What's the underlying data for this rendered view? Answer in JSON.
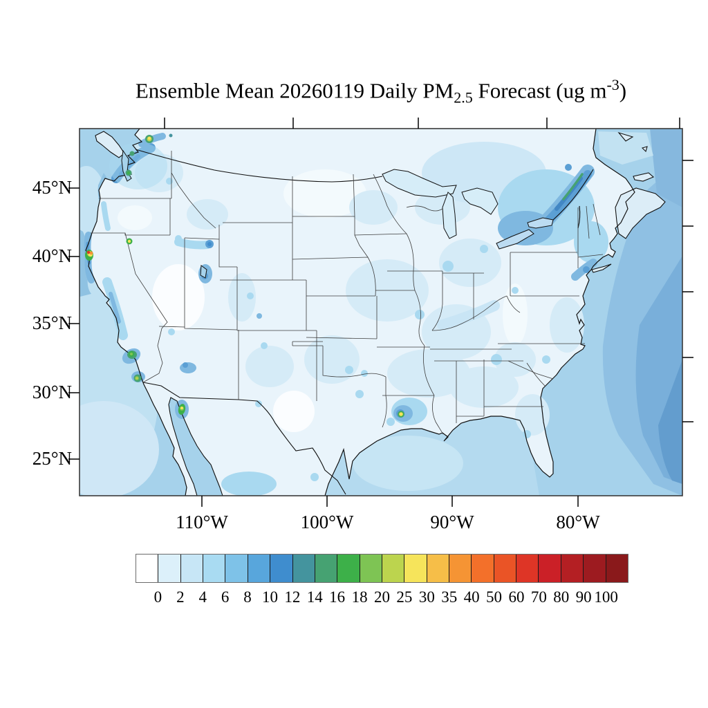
{
  "title": {
    "prefix": "Ensemble Mean 20260119 Daily PM",
    "sub": "2.5",
    "mid": " Forecast (ug m",
    "sup": "-3",
    "suffix": ")"
  },
  "axes": {
    "lat": [
      {
        "label": "45°N"
      },
      {
        "label": "40°N"
      },
      {
        "label": "35°N"
      },
      {
        "label": "30°N"
      },
      {
        "label": "25°N"
      }
    ],
    "lon": [
      {
        "label": "110°W"
      },
      {
        "label": "100°W"
      },
      {
        "label": "90°W"
      },
      {
        "label": "80°W"
      }
    ]
  },
  "colorbar": {
    "labels": [
      "0",
      "2",
      "4",
      "6",
      "8",
      "10",
      "12",
      "14",
      "16",
      "18",
      "20",
      "25",
      "30",
      "35",
      "40",
      "50",
      "60",
      "70",
      "80",
      "90",
      "100"
    ],
    "colors": [
      "#ffffff",
      "#dcf0fa",
      "#c7e6f6",
      "#a9dbf2",
      "#7ec2e8",
      "#58a6dc",
      "#3f8dce",
      "#44949e",
      "#46a272",
      "#3db049",
      "#7ec454",
      "#bcd44e",
      "#f6e45b",
      "#f6be48",
      "#f59434",
      "#f3702a",
      "#ea5426",
      "#de3526",
      "#cb2027",
      "#b41f23",
      "#9d1b20",
      "#8a191b"
    ]
  },
  "chart_data": {
    "type": "heatmap",
    "subtype": "filled-contour geographic map",
    "title": "Ensemble Mean 20260119 Daily PM2.5 Forecast (ug m-3)",
    "variable": "Daily PM2.5",
    "units": "ug m-3",
    "date": "20260119",
    "model": "Ensemble Mean",
    "region": "Continental United States and adjacent Canada/Mexico/oceans",
    "x_axis": {
      "label_ticks": [
        "110°W",
        "100°W",
        "90°W",
        "80°W"
      ]
    },
    "y_axis": {
      "label_ticks": [
        "45°N",
        "40°N",
        "35°N",
        "30°N",
        "25°N"
      ]
    },
    "contour_levels": [
      0,
      2,
      4,
      6,
      8,
      10,
      12,
      14,
      16,
      18,
      20,
      25,
      30,
      35,
      40,
      50,
      60,
      70,
      80,
      90,
      100
    ],
    "palette_hex": [
      "#ffffff",
      "#dcf0fa",
      "#c7e6f6",
      "#a9dbf2",
      "#7ec2e8",
      "#58a6dc",
      "#3f8dce",
      "#44949e",
      "#46a272",
      "#3db049",
      "#7ec454",
      "#bcd44e",
      "#f6e45b",
      "#f6be48",
      "#f59434",
      "#f3702a",
      "#ea5426",
      "#de3526",
      "#cb2027",
      "#b41f23",
      "#9d1b20",
      "#8a191b"
    ],
    "legend_position": "bottom horizontal colorbar",
    "grid": "off",
    "general_field": "Most of CONUS in 0-8 ug/m3 (pale blues); oceans 4-8; darker 8-14 bands over Pacific Northwest, California coast/valleys, Louisiana, Northeast/St. Lawrence valley and offshore southeast Atlantic",
    "notable_maxima": [
      {
        "location_approx": "49N 122W (BC/WA border)",
        "peak_level": "25-30 (yellow core, green ring)"
      },
      {
        "location_approx": "47-48N 122W (Puget Sound)",
        "peak_level": "16-20 (green patches in 10-14 band)"
      },
      {
        "location_approx": "40N 124W (N California coast)",
        "peak_level": ">70 (red core, orange/yellow/green rings)"
      },
      {
        "location_approx": "41N 120W (NE California)",
        "peak_level": "25-30 (yellow dot, green ring)"
      },
      {
        "location_approx": "34N 118W (Los Angeles)",
        "peak_level": "18-20 (green blob)"
      },
      {
        "location_approx": "32.5N 117W (San Diego/Tijuana)",
        "peak_level": "20-25 (yellow-green center)"
      },
      {
        "location_approx": "29N 110W (Sonora, Mexico)",
        "peak_level": "25-30 (yellow core in green)"
      },
      {
        "location_approx": "31N 93W (Louisiana)",
        "peak_level": "25-30 (yellow dot, green ring)"
      },
      {
        "location_approx": "45-46N 74-72W (St. Lawrence valley)",
        "peak_level": "16-18 (green streak in dark blue band)"
      }
    ]
  }
}
